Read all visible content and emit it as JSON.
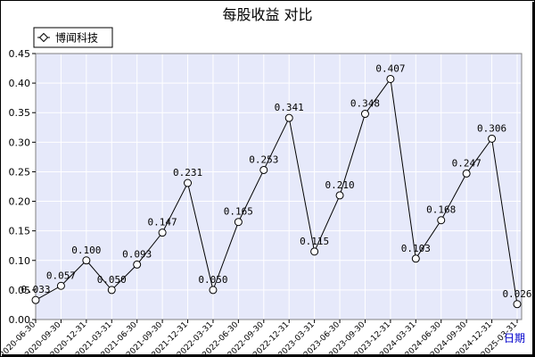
{
  "chart_data": {
    "type": "line",
    "title": "每股收益  对比",
    "xlabel": "日期",
    "ylabel": "",
    "ylim": [
      0,
      0.45
    ],
    "yticks": [
      "0.00",
      "0.05",
      "0.10",
      "0.15",
      "0.20",
      "0.25",
      "0.30",
      "0.35",
      "0.40",
      "0.45"
    ],
    "legend_position": "top-left",
    "grid": true,
    "colors": {
      "background": "#e6e9fa",
      "grid": "#ffffff",
      "line": "#000000",
      "frame": "#808080"
    },
    "categories": [
      "2020-06-30",
      "2020-09-30",
      "2020-12-31",
      "2021-03-31",
      "2021-06-30",
      "2021-09-30",
      "2021-12-31",
      "2022-03-31",
      "2022-06-30",
      "2022-09-30",
      "2022-12-31",
      "2023-03-31",
      "2023-06-30",
      "2023-09-30",
      "2023-12-31",
      "2024-03-31",
      "2024-06-30",
      "2024-09-30",
      "2024-12-31",
      "2025-03-31"
    ],
    "series": [
      {
        "name": "博闻科技",
        "values": [
          0.033,
          0.057,
          0.1,
          0.05,
          0.093,
          0.147,
          0.231,
          0.05,
          0.165,
          0.253,
          0.341,
          0.115,
          0.21,
          0.348,
          0.407,
          0.103,
          0.168,
          0.247,
          0.306,
          0.026
        ],
        "labels": [
          "0.033",
          "0.057",
          "0.100",
          "0.050",
          "0.093",
          "0.147",
          "0.231",
          "0.050",
          "0.165",
          "0.253",
          "0.341",
          "0.115",
          "0.210",
          "0.348",
          "0.407",
          "0.103",
          "0.168",
          "0.247",
          "0.306",
          "0.026"
        ]
      }
    ]
  }
}
